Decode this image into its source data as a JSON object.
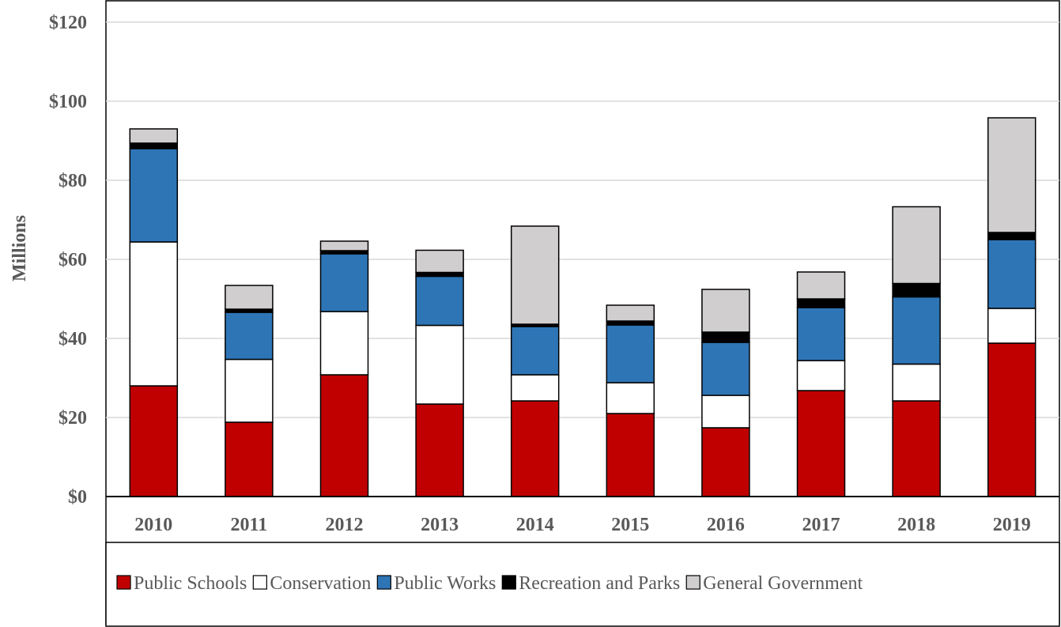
{
  "chart_data": {
    "type": "bar",
    "stacked": true,
    "categories": [
      "2010",
      "2011",
      "2012",
      "2013",
      "2014",
      "2015",
      "2016",
      "2017",
      "2018",
      "2019"
    ],
    "series": [
      {
        "name": "Public Schools",
        "color": "#c00000",
        "values": [
          28,
          18.8,
          30.8,
          23.4,
          24.2,
          21,
          17.4,
          26.8,
          24.2,
          38.8
        ]
      },
      {
        "name": "Conservation",
        "color": "#ffffff",
        "values": [
          36.4,
          15.9,
          16,
          19.9,
          6.6,
          7.8,
          8.2,
          7.6,
          9.3,
          8.8
        ]
      },
      {
        "name": "Public Works",
        "color": "#2e75b6",
        "values": [
          23.6,
          11.9,
          14.6,
          12.4,
          12.2,
          14.6,
          13.4,
          13.4,
          17,
          17.4
        ]
      },
      {
        "name": "Recreation and Parks",
        "color": "#000000",
        "values": [
          1.4,
          0.8,
          0.8,
          1,
          0.6,
          1,
          2.6,
          2.2,
          3.4,
          1.8
        ]
      },
      {
        "name": "General Government",
        "color": "#d0cece",
        "values": [
          3.6,
          6,
          2.4,
          5.6,
          24.8,
          4,
          10.8,
          6.8,
          19.4,
          29
        ]
      }
    ],
    "ylabel": "Millions",
    "xlabel": "",
    "ylim": [
      0,
      120
    ],
    "yticks": [
      0,
      20,
      40,
      60,
      80,
      100,
      120
    ],
    "ytick_labels": [
      "$0",
      "$20",
      "$40",
      "$60",
      "$80",
      "$100",
      "$120"
    ],
    "grid": true,
    "legend_position": "bottom"
  }
}
